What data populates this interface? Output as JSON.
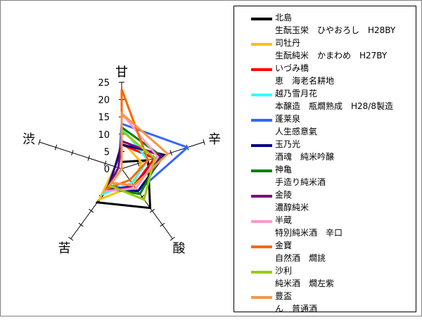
{
  "chart_data": {
    "type": "radar",
    "axes": [
      "甘",
      "辛",
      "酸",
      "苦",
      "渋"
    ],
    "ticks": [
      "25",
      "20",
      "15",
      "10",
      "5",
      "0"
    ],
    "range": [
      0,
      25
    ],
    "series": [
      {
        "name": "北島",
        "sub": "生酛玉栄　ひやおろし　H28BY",
        "color": "#000000",
        "values": [
          2,
          8,
          14,
          12,
          0
        ]
      },
      {
        "name": "司牡丹",
        "sub": "生酛純米　かまわめ　H27BY",
        "color": "#FFC000",
        "values": [
          8,
          6,
          6,
          11,
          2
        ]
      },
      {
        "name": "いづみ橋",
        "sub": "恵　海老名耕地",
        "color": "#FF0000",
        "values": [
          7,
          10,
          6,
          8,
          0
        ]
      },
      {
        "name": "越乃雪月花",
        "sub": "本醸造　瓶燗熟成　H28/8製造",
        "color": "#33FFFF",
        "values": [
          12,
          8,
          5,
          9,
          0
        ]
      },
      {
        "name": "蓬莱泉",
        "sub": "人生感意氣",
        "color": "#3366FF",
        "values": [
          13,
          20,
          8,
          6,
          1
        ]
      },
      {
        "name": "玉乃光",
        "sub": "酒魂　純米吟醸",
        "color": "#000080",
        "values": [
          7,
          13,
          8,
          7,
          2
        ]
      },
      {
        "name": "神亀",
        "sub": "手造り純米酒",
        "color": "#008000",
        "values": [
          12,
          12,
          9,
          7,
          0
        ]
      },
      {
        "name": "金陵",
        "sub": "濃醇純米",
        "color": "#800080",
        "values": [
          8,
          12,
          6,
          8,
          1
        ]
      },
      {
        "name": "半蔵",
        "sub": "特別純米酒　辛口",
        "color": "#FF99CC",
        "values": [
          16,
          11,
          7,
          8,
          0
        ]
      },
      {
        "name": "金寶",
        "sub": "自然酒　燗誂",
        "color": "#FF6600",
        "values": [
          23,
          8,
          4,
          7,
          0
        ]
      },
      {
        "name": "沙利",
        "sub": "純米酒　燗左紫",
        "color": "#99CC00",
        "values": [
          11,
          10,
          11,
          6,
          0
        ]
      },
      {
        "name": "豊盃",
        "sub": "ん　普通酒",
        "color": "#F79646",
        "values": [
          16,
          14,
          6,
          5,
          0
        ]
      }
    ],
    "grid": false,
    "legend_position": "right"
  }
}
